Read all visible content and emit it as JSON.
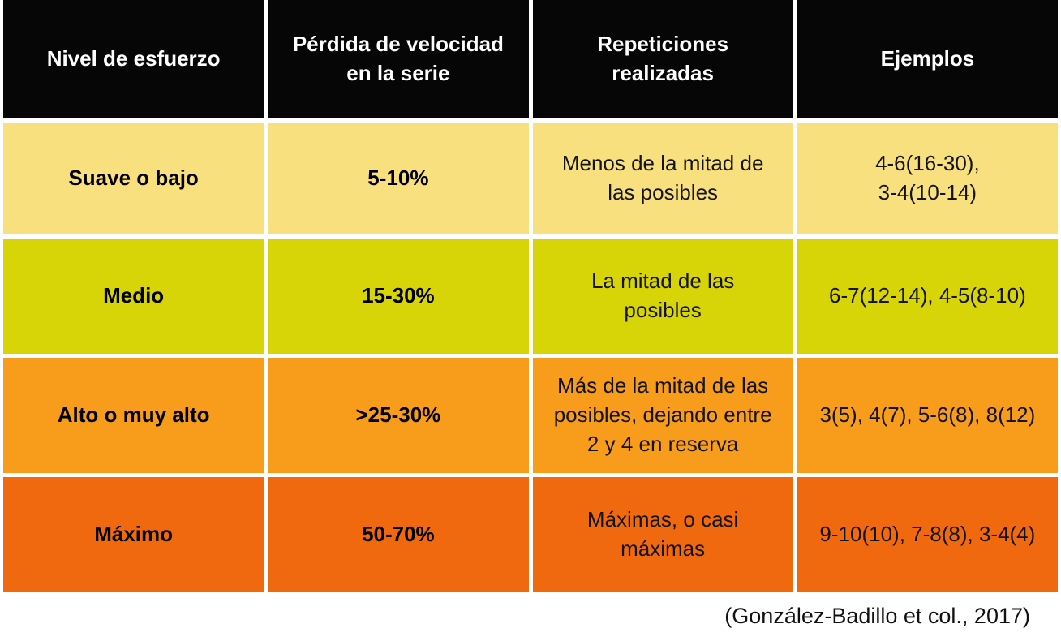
{
  "chart_data": {
    "type": "table",
    "columns": [
      {
        "id": "nivel",
        "label": "Nivel de esfuerzo"
      },
      {
        "id": "perdida",
        "label": "Pérdida de velocidad\nen la serie"
      },
      {
        "id": "repeticiones",
        "label": "Repeticiones\nrealizadas"
      },
      {
        "id": "ejemplos",
        "label": "Ejemplos"
      }
    ],
    "rows": [
      {
        "nivel": "Suave o bajo",
        "perdida": "5-10%",
        "repeticiones": "Menos de la mitad de\nlas posibles",
        "ejemplos": "4-6(16-30),\n3-4(10-14)",
        "row_color": "#F8E07E"
      },
      {
        "nivel": "Medio",
        "perdida": "15-30%",
        "repeticiones": "La mitad de las\nposibles",
        "ejemplos": "6-7(12-14), 4-5(8-10)",
        "row_color": "#D7D508"
      },
      {
        "nivel": "Alto o muy alto",
        "perdida": ">25-30%",
        "repeticiones": "Más de la mitad de las\nposibles, dejando entre\n2 y 4 en reserva",
        "ejemplos": "3(5), 4(7), 5-6(8), 8(12)",
        "row_color": "#F89C1C"
      },
      {
        "nivel": "Máximo",
        "perdida": "50-70%",
        "repeticiones": "Máximas, o casi\nmáximas",
        "ejemplos": "9-10(10), 7-8(8), 3-4(4)",
        "row_color": "#F0690E"
      }
    ],
    "citation": "(González-Badillo et col., 2017)",
    "layout": "4 equal columns, header row black, grid gaps white"
  },
  "colors": {
    "header_bg": "#070606",
    "header_text": "#FFFFFF",
    "cell_text": "#141414",
    "page_bg": "#FFFFFF",
    "row_colors": [
      "#F8E07E",
      "#D7D508",
      "#F89C1C",
      "#F0690E"
    ]
  }
}
